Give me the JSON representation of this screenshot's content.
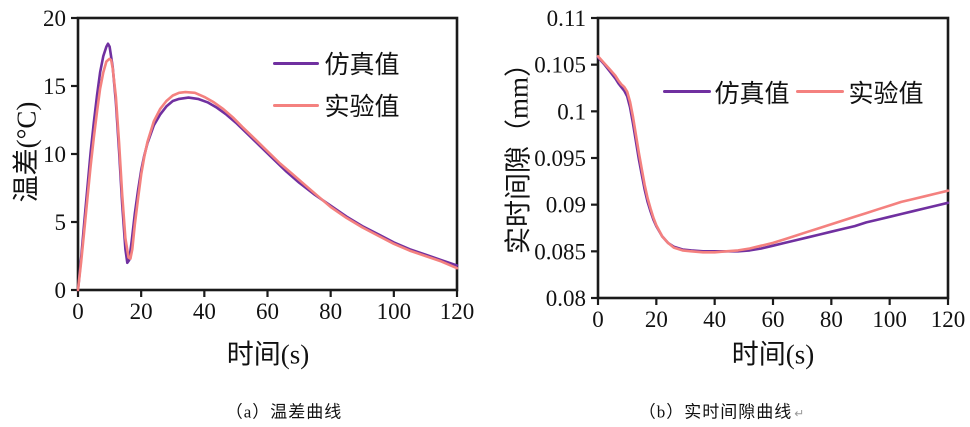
{
  "page": {
    "background": "#ffffff"
  },
  "colors": {
    "axis": "#1a1a1a",
    "simulation": "#7030A0",
    "experiment": "#F4817F"
  },
  "captions": {
    "a": "（a）温差曲线",
    "b": "（b）实时间隙曲线",
    "b_return_mark": "↵"
  },
  "chart_data": [
    {
      "id": "temperature-difference",
      "type": "line",
      "caption": "（a）温差曲线",
      "xlabel": "时间(s)",
      "ylabel": "温差(°C)",
      "xlim": [
        0,
        120
      ],
      "ylim": [
        0,
        20
      ],
      "grid": false,
      "legend_position": "upper-right vertical",
      "legend": [
        "仿真值",
        "实验值"
      ],
      "xticks": [
        {
          "v": 0,
          "label": "0"
        },
        {
          "v": 20,
          "label": "20"
        },
        {
          "v": 40,
          "label": "40"
        },
        {
          "v": 60,
          "label": "60"
        },
        {
          "v": 80,
          "label": "80"
        },
        {
          "v": 100,
          "label": "100"
        },
        {
          "v": 120,
          "label": "120"
        }
      ],
      "yticks": [
        {
          "v": 0,
          "label": "0"
        },
        {
          "v": 5,
          "label": "5"
        },
        {
          "v": 10,
          "label": "10"
        },
        {
          "v": 15,
          "label": "15"
        },
        {
          "v": 20,
          "label": "20"
        }
      ],
      "series": [
        {
          "id": "simulation",
          "name": "仿真值",
          "color": "#7030A0",
          "points": [
            [
              0,
              0
            ],
            [
              1,
              2.4
            ],
            [
              2,
              5
            ],
            [
              3,
              7.6
            ],
            [
              4,
              10.1
            ],
            [
              5,
              12.3
            ],
            [
              6,
              14.3
            ],
            [
              7,
              16
            ],
            [
              8,
              17.2
            ],
            [
              9,
              17.9
            ],
            [
              9.5,
              18.1
            ],
            [
              10,
              17.9
            ],
            [
              11,
              16.4
            ],
            [
              12,
              13.8
            ],
            [
              13,
              10.2
            ],
            [
              14,
              6.3
            ],
            [
              15,
              3
            ],
            [
              15.6,
              2
            ],
            [
              16.2,
              2.2
            ],
            [
              17,
              3.6
            ],
            [
              18,
              5.6
            ],
            [
              19,
              7.3
            ],
            [
              20,
              8.8
            ],
            [
              21,
              9.9
            ],
            [
              22,
              10.8
            ],
            [
              24,
              12.1
            ],
            [
              26,
              12.9
            ],
            [
              28,
              13.5
            ],
            [
              30,
              13.9
            ],
            [
              32,
              14.05
            ],
            [
              35,
              14.15
            ],
            [
              38,
              14.05
            ],
            [
              41,
              13.8
            ],
            [
              44,
              13.4
            ],
            [
              47,
              12.9
            ],
            [
              50,
              12.3
            ],
            [
              54,
              11.4
            ],
            [
              58,
              10.5
            ],
            [
              62,
              9.6
            ],
            [
              66,
              8.7
            ],
            [
              70,
              7.9
            ],
            [
              75,
              7
            ],
            [
              80,
              6.2
            ],
            [
              85,
              5.4
            ],
            [
              90,
              4.7
            ],
            [
              95,
              4.1
            ],
            [
              100,
              3.5
            ],
            [
              105,
              3
            ],
            [
              110,
              2.6
            ],
            [
              115,
              2.2
            ],
            [
              120,
              1.8
            ]
          ]
        },
        {
          "id": "experiment",
          "name": "实验值",
          "color": "#F4817F",
          "points": [
            [
              0,
              0
            ],
            [
              1,
              2.1
            ],
            [
              2,
              4.4
            ],
            [
              3,
              6.8
            ],
            [
              4,
              9.1
            ],
            [
              5,
              11.2
            ],
            [
              6,
              13.1
            ],
            [
              7,
              14.8
            ],
            [
              8,
              16
            ],
            [
              9,
              16.8
            ],
            [
              10,
              17
            ],
            [
              10.5,
              16.9
            ],
            [
              11,
              16.3
            ],
            [
              12,
              14.2
            ],
            [
              13,
              10.8
            ],
            [
              14,
              7
            ],
            [
              15,
              3.8
            ],
            [
              16,
              2.4
            ],
            [
              16.6,
              2.3
            ],
            [
              17.2,
              3
            ],
            [
              18,
              4.8
            ],
            [
              19,
              6.7
            ],
            [
              20,
              8.5
            ],
            [
              21,
              9.8
            ],
            [
              22,
              10.9
            ],
            [
              24,
              12.4
            ],
            [
              26,
              13.3
            ],
            [
              28,
              13.9
            ],
            [
              30,
              14.3
            ],
            [
              32,
              14.5
            ],
            [
              34,
              14.55
            ],
            [
              37,
              14.5
            ],
            [
              40,
              14.2
            ],
            [
              43,
              13.8
            ],
            [
              46,
              13.3
            ],
            [
              49,
              12.7
            ],
            [
              52,
              12
            ],
            [
              56,
              11.1
            ],
            [
              60,
              10.2
            ],
            [
              64,
              9.3
            ],
            [
              68,
              8.5
            ],
            [
              72,
              7.7
            ],
            [
              76,
              6.9
            ],
            [
              80,
              6.1
            ],
            [
              85,
              5.3
            ],
            [
              90,
              4.6
            ],
            [
              95,
              4
            ],
            [
              100,
              3.4
            ],
            [
              105,
              2.9
            ],
            [
              110,
              2.5
            ],
            [
              115,
              2.1
            ],
            [
              120,
              1.6
            ]
          ]
        }
      ]
    },
    {
      "id": "real-time-gap",
      "type": "line",
      "caption": "（b）实时间隙曲线",
      "xlabel": "时间(s)",
      "ylabel": "实时间隙（mm）",
      "xlim": [
        0,
        120
      ],
      "ylim": [
        0.08,
        0.11
      ],
      "grid": false,
      "legend_position": "upper-center horizontal",
      "legend": [
        "仿真值",
        "实验值"
      ],
      "xticks": [
        {
          "v": 0,
          "label": "0"
        },
        {
          "v": 20,
          "label": "20"
        },
        {
          "v": 40,
          "label": "40"
        },
        {
          "v": 60,
          "label": "60"
        },
        {
          "v": 80,
          "label": "80"
        },
        {
          "v": 100,
          "label": "100"
        },
        {
          "v": 120,
          "label": "120"
        }
      ],
      "yticks": [
        {
          "v": 0.08,
          "label": "0.08"
        },
        {
          "v": 0.085,
          "label": "0.085"
        },
        {
          "v": 0.09,
          "label": "0.09"
        },
        {
          "v": 0.095,
          "label": "0.095"
        },
        {
          "v": 0.1,
          "label": "0.1"
        },
        {
          "v": 0.105,
          "label": "0.105"
        },
        {
          "v": 0.11,
          "label": "0.11"
        }
      ],
      "series": [
        {
          "id": "simulation",
          "name": "仿真值",
          "color": "#7030A0",
          "points": [
            [
              0,
              0.1058
            ],
            [
              2,
              0.1051
            ],
            [
              4,
              0.1043
            ],
            [
              6,
              0.1035
            ],
            [
              7,
              0.103
            ],
            [
              8,
              0.1026
            ],
            [
              9,
              0.1022
            ],
            [
              10,
              0.1016
            ],
            [
              11,
              0.1004
            ],
            [
              12,
              0.0987
            ],
            [
              13,
              0.0968
            ],
            [
              14,
              0.0949
            ],
            [
              15,
              0.0932
            ],
            [
              16,
              0.0916
            ],
            [
              17,
              0.0903
            ],
            [
              18,
              0.0893
            ],
            [
              19,
              0.0884
            ],
            [
              20,
              0.0877
            ],
            [
              22,
              0.0866
            ],
            [
              24,
              0.0859
            ],
            [
              26,
              0.0855
            ],
            [
              29,
              0.0852
            ],
            [
              32,
              0.0851
            ],
            [
              36,
              0.085
            ],
            [
              40,
              0.085
            ],
            [
              44,
              0.085
            ],
            [
              48,
              0.085
            ],
            [
              52,
              0.0851
            ],
            [
              56,
              0.0853
            ],
            [
              60,
              0.0856
            ],
            [
              64,
              0.0859
            ],
            [
              68,
              0.0862
            ],
            [
              72,
              0.0865
            ],
            [
              76,
              0.0868
            ],
            [
              80,
              0.0871
            ],
            [
              84,
              0.0874
            ],
            [
              88,
              0.0877
            ],
            [
              92,
              0.0881
            ],
            [
              96,
              0.0884
            ],
            [
              100,
              0.0887
            ],
            [
              104,
              0.089
            ],
            [
              108,
              0.0893
            ],
            [
              112,
              0.0896
            ],
            [
              116,
              0.0899
            ],
            [
              120,
              0.0902
            ]
          ]
        },
        {
          "id": "experiment",
          "name": "实验值",
          "color": "#F4817F",
          "points": [
            [
              0,
              0.1059
            ],
            [
              2,
              0.1052
            ],
            [
              4,
              0.1045
            ],
            [
              6,
              0.1038
            ],
            [
              7,
              0.1033
            ],
            [
              8,
              0.1029
            ],
            [
              9,
              0.1026
            ],
            [
              10,
              0.1021
            ],
            [
              11,
              0.101
            ],
            [
              12,
              0.0994
            ],
            [
              13,
              0.0975
            ],
            [
              14,
              0.0956
            ],
            [
              15,
              0.0938
            ],
            [
              16,
              0.0921
            ],
            [
              17,
              0.0907
            ],
            [
              18,
              0.0896
            ],
            [
              19,
              0.0886
            ],
            [
              20,
              0.0878
            ],
            [
              22,
              0.0866
            ],
            [
              24,
              0.0859
            ],
            [
              26,
              0.0854
            ],
            [
              29,
              0.0851
            ],
            [
              32,
              0.085
            ],
            [
              36,
              0.0849
            ],
            [
              40,
              0.0849
            ],
            [
              44,
              0.085
            ],
            [
              48,
              0.0851
            ],
            [
              52,
              0.0853
            ],
            [
              56,
              0.0856
            ],
            [
              60,
              0.0859
            ],
            [
              64,
              0.0863
            ],
            [
              68,
              0.0867
            ],
            [
              72,
              0.0871
            ],
            [
              76,
              0.0875
            ],
            [
              80,
              0.0879
            ],
            [
              84,
              0.0883
            ],
            [
              88,
              0.0887
            ],
            [
              92,
              0.0891
            ],
            [
              96,
              0.0895
            ],
            [
              100,
              0.0899
            ],
            [
              104,
              0.0903
            ],
            [
              108,
              0.0906
            ],
            [
              112,
              0.0909
            ],
            [
              116,
              0.0912
            ],
            [
              120,
              0.0915
            ]
          ]
        }
      ]
    }
  ]
}
